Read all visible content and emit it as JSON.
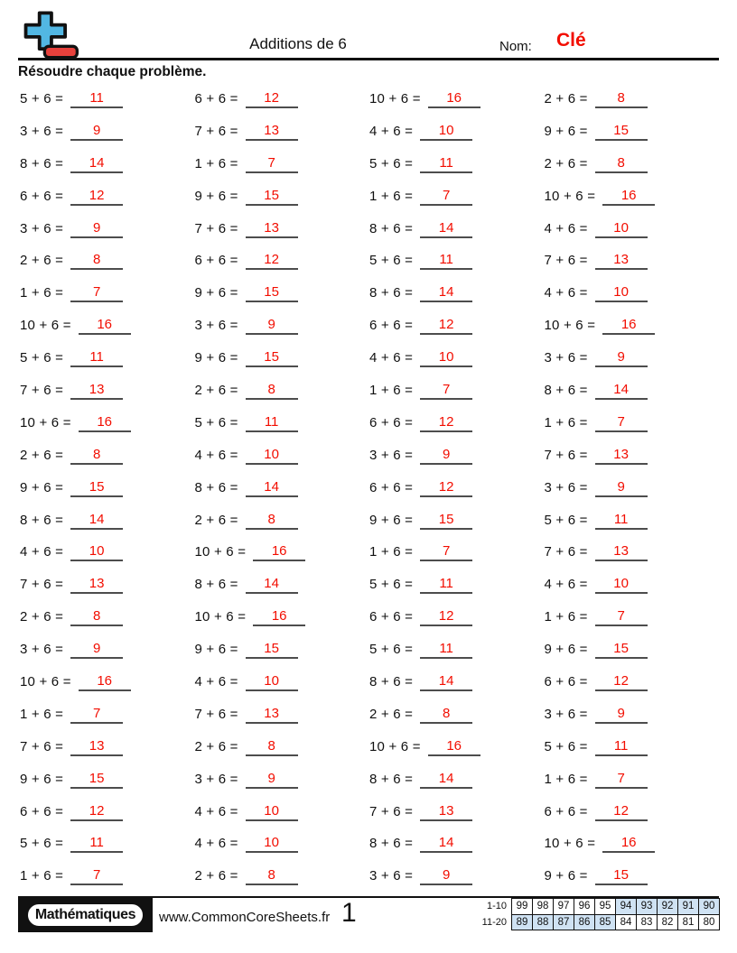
{
  "colors": {
    "answer_red": "#f20d00",
    "logo_blue": "#52b7e3",
    "logo_red": "#e8413c",
    "table_blue": "#cfe2f3"
  },
  "header": {
    "logo_icon": "plus-minus-icon",
    "title": "Additions de 6",
    "name_label": "Nom:",
    "name_value": "Clé"
  },
  "instruction": "Résoudre chaque problème.",
  "problems": [
    {
      "eq": "5 + 6 =",
      "ans": "11"
    },
    {
      "eq": "6 + 6 =",
      "ans": "12"
    },
    {
      "eq": "10 + 6 =",
      "ans": "16"
    },
    {
      "eq": "2 + 6 =",
      "ans": "8"
    },
    {
      "eq": "3 + 6 =",
      "ans": "9"
    },
    {
      "eq": "7 + 6 =",
      "ans": "13"
    },
    {
      "eq": "4 + 6 =",
      "ans": "10"
    },
    {
      "eq": "9 + 6 =",
      "ans": "15"
    },
    {
      "eq": "8 + 6 =",
      "ans": "14"
    },
    {
      "eq": "1 + 6 =",
      "ans": "7"
    },
    {
      "eq": "5 + 6 =",
      "ans": "11"
    },
    {
      "eq": "2 + 6 =",
      "ans": "8"
    },
    {
      "eq": "6 + 6 =",
      "ans": "12"
    },
    {
      "eq": "9 + 6 =",
      "ans": "15"
    },
    {
      "eq": "1 + 6 =",
      "ans": "7"
    },
    {
      "eq": "10 + 6 =",
      "ans": "16"
    },
    {
      "eq": "3 + 6 =",
      "ans": "9"
    },
    {
      "eq": "7 + 6 =",
      "ans": "13"
    },
    {
      "eq": "8 + 6 =",
      "ans": "14"
    },
    {
      "eq": "4 + 6 =",
      "ans": "10"
    },
    {
      "eq": "2 + 6 =",
      "ans": "8"
    },
    {
      "eq": "6 + 6 =",
      "ans": "12"
    },
    {
      "eq": "5 + 6 =",
      "ans": "11"
    },
    {
      "eq": "7 + 6 =",
      "ans": "13"
    },
    {
      "eq": "1 + 6 =",
      "ans": "7"
    },
    {
      "eq": "9 + 6 =",
      "ans": "15"
    },
    {
      "eq": "8 + 6 =",
      "ans": "14"
    },
    {
      "eq": "4 + 6 =",
      "ans": "10"
    },
    {
      "eq": "10 + 6 =",
      "ans": "16"
    },
    {
      "eq": "3 + 6 =",
      "ans": "9"
    },
    {
      "eq": "6 + 6 =",
      "ans": "12"
    },
    {
      "eq": "10 + 6 =",
      "ans": "16"
    },
    {
      "eq": "5 + 6 =",
      "ans": "11"
    },
    {
      "eq": "9 + 6 =",
      "ans": "15"
    },
    {
      "eq": "4 + 6 =",
      "ans": "10"
    },
    {
      "eq": "3 + 6 =",
      "ans": "9"
    },
    {
      "eq": "7 + 6 =",
      "ans": "13"
    },
    {
      "eq": "2 + 6 =",
      "ans": "8"
    },
    {
      "eq": "1 + 6 =",
      "ans": "7"
    },
    {
      "eq": "8 + 6 =",
      "ans": "14"
    },
    {
      "eq": "10 + 6 =",
      "ans": "16"
    },
    {
      "eq": "5 + 6 =",
      "ans": "11"
    },
    {
      "eq": "6 + 6 =",
      "ans": "12"
    },
    {
      "eq": "1 + 6 =",
      "ans": "7"
    },
    {
      "eq": "2 + 6 =",
      "ans": "8"
    },
    {
      "eq": "4 + 6 =",
      "ans": "10"
    },
    {
      "eq": "3 + 6 =",
      "ans": "9"
    },
    {
      "eq": "7 + 6 =",
      "ans": "13"
    },
    {
      "eq": "9 + 6 =",
      "ans": "15"
    },
    {
      "eq": "8 + 6 =",
      "ans": "14"
    },
    {
      "eq": "6 + 6 =",
      "ans": "12"
    },
    {
      "eq": "3 + 6 =",
      "ans": "9"
    },
    {
      "eq": "8 + 6 =",
      "ans": "14"
    },
    {
      "eq": "2 + 6 =",
      "ans": "8"
    },
    {
      "eq": "9 + 6 =",
      "ans": "15"
    },
    {
      "eq": "5 + 6 =",
      "ans": "11"
    },
    {
      "eq": "4 + 6 =",
      "ans": "10"
    },
    {
      "eq": "10 + 6 =",
      "ans": "16"
    },
    {
      "eq": "1 + 6 =",
      "ans": "7"
    },
    {
      "eq": "7 + 6 =",
      "ans": "13"
    },
    {
      "eq": "7 + 6 =",
      "ans": "13"
    },
    {
      "eq": "8 + 6 =",
      "ans": "14"
    },
    {
      "eq": "5 + 6 =",
      "ans": "11"
    },
    {
      "eq": "4 + 6 =",
      "ans": "10"
    },
    {
      "eq": "2 + 6 =",
      "ans": "8"
    },
    {
      "eq": "10 + 6 =",
      "ans": "16"
    },
    {
      "eq": "6 + 6 =",
      "ans": "12"
    },
    {
      "eq": "1 + 6 =",
      "ans": "7"
    },
    {
      "eq": "3 + 6 =",
      "ans": "9"
    },
    {
      "eq": "9 + 6 =",
      "ans": "15"
    },
    {
      "eq": "5 + 6 =",
      "ans": "11"
    },
    {
      "eq": "9 + 6 =",
      "ans": "15"
    },
    {
      "eq": "10 + 6 =",
      "ans": "16"
    },
    {
      "eq": "4 + 6 =",
      "ans": "10"
    },
    {
      "eq": "8 + 6 =",
      "ans": "14"
    },
    {
      "eq": "6 + 6 =",
      "ans": "12"
    },
    {
      "eq": "1 + 6 =",
      "ans": "7"
    },
    {
      "eq": "7 + 6 =",
      "ans": "13"
    },
    {
      "eq": "2 + 6 =",
      "ans": "8"
    },
    {
      "eq": "3 + 6 =",
      "ans": "9"
    },
    {
      "eq": "7 + 6 =",
      "ans": "13"
    },
    {
      "eq": "2 + 6 =",
      "ans": "8"
    },
    {
      "eq": "10 + 6 =",
      "ans": "16"
    },
    {
      "eq": "5 + 6 =",
      "ans": "11"
    },
    {
      "eq": "9 + 6 =",
      "ans": "15"
    },
    {
      "eq": "3 + 6 =",
      "ans": "9"
    },
    {
      "eq": "8 + 6 =",
      "ans": "14"
    },
    {
      "eq": "1 + 6 =",
      "ans": "7"
    },
    {
      "eq": "6 + 6 =",
      "ans": "12"
    },
    {
      "eq": "4 + 6 =",
      "ans": "10"
    },
    {
      "eq": "7 + 6 =",
      "ans": "13"
    },
    {
      "eq": "6 + 6 =",
      "ans": "12"
    },
    {
      "eq": "5 + 6 =",
      "ans": "11"
    },
    {
      "eq": "4 + 6 =",
      "ans": "10"
    },
    {
      "eq": "8 + 6 =",
      "ans": "14"
    },
    {
      "eq": "10 + 6 =",
      "ans": "16"
    },
    {
      "eq": "1 + 6 =",
      "ans": "7"
    },
    {
      "eq": "2 + 6 =",
      "ans": "8"
    },
    {
      "eq": "3 + 6 =",
      "ans": "9"
    },
    {
      "eq": "9 + 6 =",
      "ans": "15"
    }
  ],
  "footer": {
    "brand": "Mathématiques",
    "website": "www.CommonCoreSheets.fr",
    "page_number": "1",
    "score_table": {
      "rows": [
        {
          "label": "1-10",
          "values": [
            "99",
            "98",
            "97",
            "96",
            "95",
            "94",
            "93",
            "92",
            "91",
            "90"
          ],
          "highlight": [
            5,
            6,
            7,
            8,
            9
          ]
        },
        {
          "label": "11-20",
          "values": [
            "89",
            "88",
            "87",
            "86",
            "85",
            "84",
            "83",
            "82",
            "81",
            "80"
          ],
          "highlight": [
            0,
            1,
            2,
            3,
            4
          ]
        }
      ]
    }
  }
}
